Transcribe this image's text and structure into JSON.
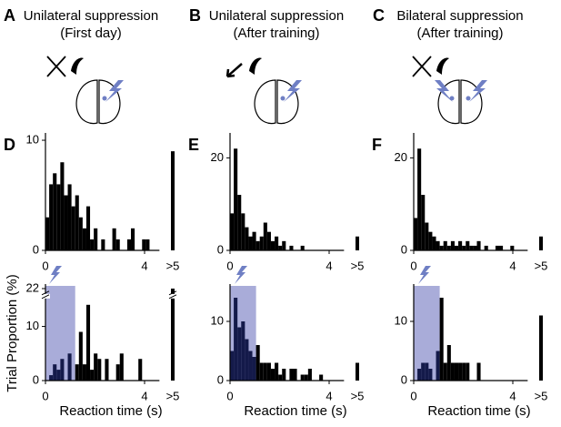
{
  "panels": [
    {
      "letter": "A",
      "title": [
        "Unilateral suppression",
        "(First day)"
      ]
    },
    {
      "letter": "B",
      "title": [
        "Unilateral suppression",
        "(After training)"
      ]
    },
    {
      "letter": "C",
      "title": [
        "Bilateral suppression",
        "(After training)"
      ]
    }
  ],
  "chart_data": [
    {
      "type": "histogram",
      "letter": "D",
      "color": "#000000",
      "bins": [
        0,
        0.15,
        0.3,
        0.45,
        0.6,
        0.75,
        0.9,
        1.05,
        1.2,
        1.35,
        1.5,
        1.65,
        1.8,
        1.95,
        2.1,
        2.25,
        2.4,
        2.55,
        2.7,
        2.85,
        3,
        3.15,
        3.3,
        3.45,
        3.6,
        3.75,
        3.9,
        4.05,
        4.2,
        4.35,
        4.5
      ],
      "values": [
        3,
        6,
        7,
        6,
        8,
        5,
        6,
        4,
        5,
        3,
        2,
        4,
        1,
        2,
        0,
        1,
        0,
        0,
        2,
        1,
        0,
        0,
        1,
        2,
        0,
        0,
        1,
        1,
        0,
        0
      ],
      "overflow": {
        "label": ">5",
        "value": 9
      },
      "xlim": [
        0,
        4.6
      ],
      "xticks": [
        0,
        4
      ],
      "ylim": [
        0,
        10.5
      ],
      "yticks": [
        0,
        10
      ]
    },
    {
      "type": "histogram",
      "color": "#000000",
      "bins": [
        0,
        0.15,
        0.3,
        0.45,
        0.6,
        0.75,
        0.9,
        1.05,
        1.2,
        1.35,
        1.5,
        1.65,
        1.8,
        1.95,
        2.1,
        2.25,
        2.4,
        2.55,
        2.7,
        2.85,
        3,
        3.15,
        3.3,
        3.45,
        3.6,
        3.75,
        3.9,
        4.05,
        4.2,
        4.35,
        4.5
      ],
      "values": [
        0,
        1,
        3,
        2,
        4,
        0,
        5,
        0,
        3,
        9,
        3,
        14,
        2,
        5,
        4,
        0,
        4,
        0,
        0,
        3,
        5,
        0,
        0,
        0,
        0,
        4,
        0,
        0,
        0,
        0
      ],
      "overflow": {
        "label": ">5",
        "value": 22
      },
      "xlim": [
        0,
        4.6
      ],
      "xticks": [
        0,
        4
      ],
      "ylim": [
        0,
        22.5
      ],
      "yticks": [
        0,
        10,
        22
      ],
      "ybreak": [
        15,
        20
      ],
      "shade": [
        0,
        1.2
      ],
      "shade_color": "#a9acd9",
      "shade_bar_color": "#141a4a",
      "xlabel": "Reaction time  (s)",
      "ylabel": "Trial Proportion (%)"
    },
    {
      "type": "histogram",
      "letter": "E",
      "color": "#000000",
      "bins": [
        0,
        0.15,
        0.3,
        0.45,
        0.6,
        0.75,
        0.9,
        1.05,
        1.2,
        1.35,
        1.5,
        1.65,
        1.8,
        1.95,
        2.1,
        2.25,
        2.4,
        2.55,
        2.7,
        2.85,
        3,
        3.15,
        3.3,
        3.45,
        3.6,
        3.75,
        3.9,
        4.05,
        4.2,
        4.35,
        4.5
      ],
      "values": [
        8,
        22,
        12,
        8,
        5,
        3,
        4,
        2,
        3,
        6,
        4,
        2,
        3,
        1,
        2,
        0,
        1,
        0,
        0,
        1,
        0,
        0,
        0,
        0,
        0,
        0,
        0,
        0,
        0,
        0
      ],
      "overflow": {
        "label": ">5",
        "value": 3
      },
      "xlim": [
        0,
        4.6
      ],
      "xticks": [
        0,
        4
      ],
      "ylim": [
        0,
        25
      ],
      "yticks": [
        0,
        20
      ]
    },
    {
      "type": "histogram",
      "color": "#000000",
      "bins": [
        0,
        0.15,
        0.3,
        0.45,
        0.6,
        0.75,
        0.9,
        1.05,
        1.2,
        1.35,
        1.5,
        1.65,
        1.8,
        1.95,
        2.1,
        2.25,
        2.4,
        2.55,
        2.7,
        2.85,
        3,
        3.15,
        3.3,
        3.45,
        3.6,
        3.75,
        3.9,
        4.05,
        4.2,
        4.35,
        4.5
      ],
      "values": [
        5,
        14,
        9,
        10,
        7,
        5,
        4,
        6,
        3,
        3,
        3,
        2,
        3,
        1,
        2,
        0,
        2,
        2,
        0,
        1,
        1,
        2,
        0,
        0,
        1,
        0,
        0,
        0,
        0,
        0
      ],
      "overflow": {
        "label": ">5",
        "value": 3
      },
      "xlim": [
        0,
        4.6
      ],
      "xticks": [
        0,
        4
      ],
      "ylim": [
        0,
        16
      ],
      "yticks": [
        0,
        10
      ],
      "shade": [
        0,
        1.05
      ],
      "shade_color": "#a9acd9",
      "shade_bar_color": "#141a4a",
      "xlabel": "Reaction time  (s)"
    },
    {
      "type": "histogram",
      "letter": "F",
      "color": "#000000",
      "bins": [
        0,
        0.15,
        0.3,
        0.45,
        0.6,
        0.75,
        0.9,
        1.05,
        1.2,
        1.35,
        1.5,
        1.65,
        1.8,
        1.95,
        2.1,
        2.25,
        2.4,
        2.55,
        2.7,
        2.85,
        3,
        3.15,
        3.3,
        3.45,
        3.6,
        3.75,
        3.9,
        4.05,
        4.2,
        4.35,
        4.5
      ],
      "values": [
        7,
        22,
        12,
        6,
        4,
        3,
        2,
        1,
        2,
        1,
        2,
        1,
        2,
        1,
        2,
        1,
        1,
        2,
        0,
        1,
        0,
        0,
        1,
        1,
        0,
        0,
        1,
        0,
        0,
        0
      ],
      "overflow": {
        "label": ">5",
        "value": 3
      },
      "xlim": [
        0,
        4.6
      ],
      "xticks": [
        0,
        4
      ],
      "ylim": [
        0,
        25
      ],
      "yticks": [
        0,
        20
      ]
    },
    {
      "type": "histogram",
      "color": "#000000",
      "bins": [
        0,
        0.15,
        0.3,
        0.45,
        0.6,
        0.75,
        0.9,
        1.05,
        1.2,
        1.35,
        1.5,
        1.65,
        1.8,
        1.95,
        2.1,
        2.25,
        2.4,
        2.55,
        2.7,
        2.85,
        3,
        3.15,
        3.3,
        3.45,
        3.6,
        3.75,
        3.9,
        4.05,
        4.2,
        4.35,
        4.5
      ],
      "values": [
        0,
        2,
        3,
        3,
        2,
        0,
        5,
        14,
        3,
        6,
        3,
        3,
        3,
        3,
        3,
        0,
        0,
        3,
        0,
        0,
        0,
        0,
        0,
        0,
        0,
        0,
        0,
        0,
        0,
        0
      ],
      "overflow": {
        "label": ">5",
        "value": 11
      },
      "xlim": [
        0,
        4.6
      ],
      "xticks": [
        0,
        4
      ],
      "ylim": [
        0,
        16
      ],
      "yticks": [
        0,
        10
      ],
      "shade": [
        0,
        1.05
      ],
      "shade_color": "#a9acd9",
      "shade_bar_color": "#141a4a",
      "xlabel": "Reaction time  (s)"
    }
  ]
}
